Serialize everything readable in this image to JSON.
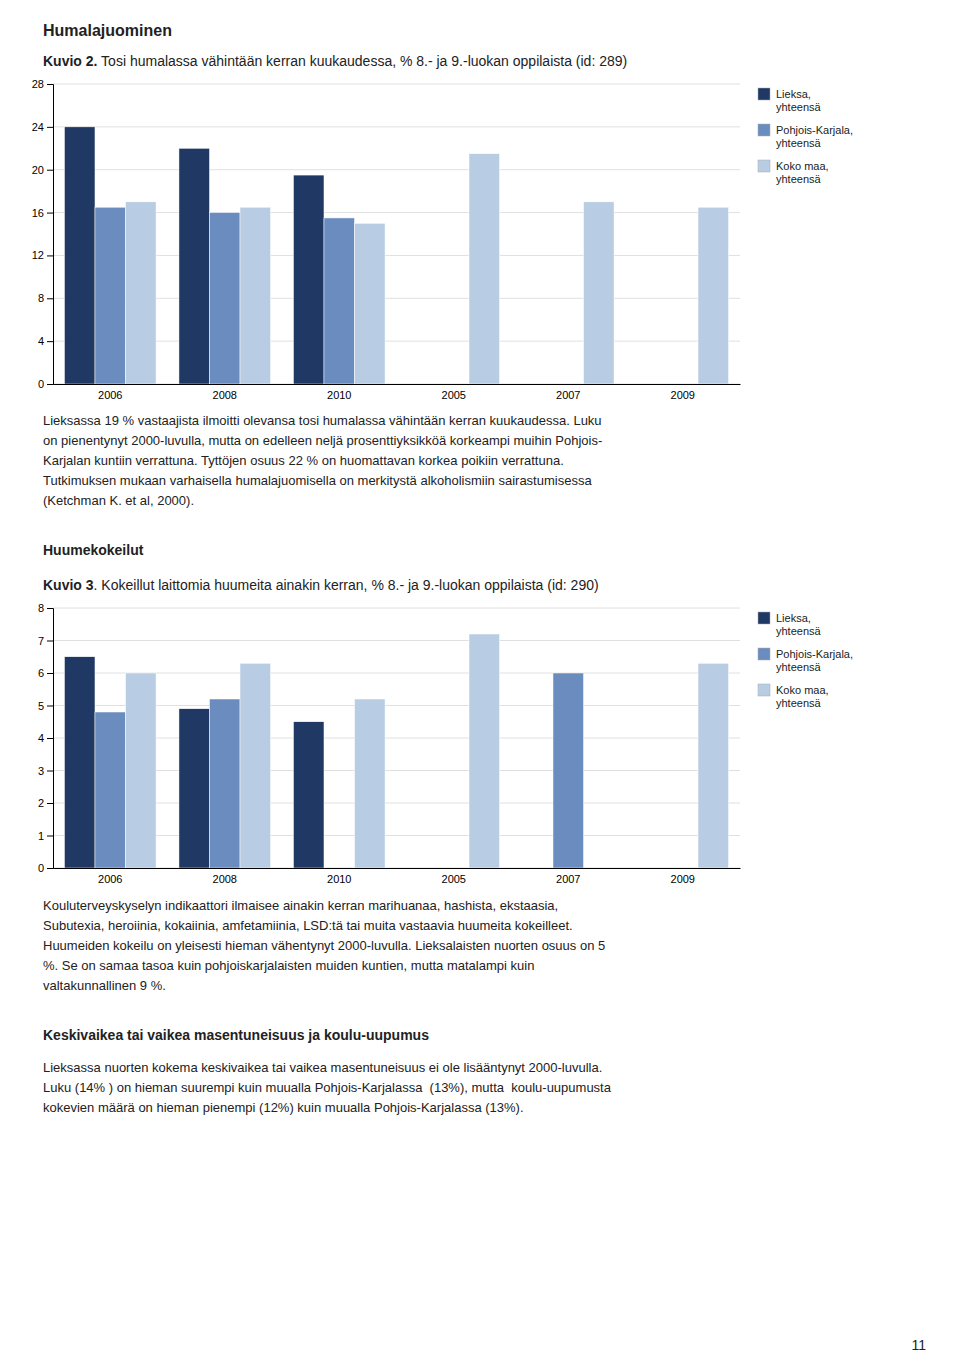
{
  "page_title": "Humalajuominen",
  "section_titles": [
    "Huumekokeilut",
    "Keskivaikea tai vaikea masentuneisuus ja koulu-uupumus"
  ],
  "paragraphs": [
    [
      "Lieksassa 19 % vastaajista ilmoitti olevansa tosi humalassa vähintään kerran kuukaudessa. Luku",
      "on pienentynyt 2000-luvulla, mutta on edelleen neljä prosenttiyksikköä korkeampi muihin Pohjois-",
      "Karjalan kuntiin verrattuna. Tyttöjen osuus 22 % on huomattavan korkea poikiin verrattuna.",
      "Tutkimuksen mukaan varhaisella humalajuomisella on merkitystä alkoholismiin sairastumisessa",
      "(Ketchman K. et al, 2000)."
    ],
    [
      "Kouluterveyskyselyn indikaattori ilmaisee ainakin kerran marihuanaa, hashista, ekstaasia,",
      "Subutexia, heroiinia, kokaiinia, amfetamiinia, LSD:tä tai muita vastaavia huumeita kokeilleet.",
      "Huumeiden kokeilu on yleisesti hieman vähentynyt 2000-luvulla. Lieksalaisten nuorten osuus on 5",
      "%. Se on samaa tasoa kuin pohjoiskarjalaisten muiden kuntien, mutta matalampi kuin",
      "valtakunnallinen 9 %."
    ],
    [
      "Lieksassa nuorten kokema keskivaikea tai vaikea masentuneisuus ei ole lisääntynyt 2000-luvulla.",
      "Luku (14% ) on hieman suurempi kuin muualla Pohjois-Karjalassa  (13%), mutta  koulu-uupumusta",
      "kokevien määrä on hieman pienempi (12%) kuin muualla Pohjois-Karjalassa (13%)."
    ]
  ],
  "page_number": "11",
  "chart_data": [
    {
      "type": "bar",
      "title": "Kuvio 2.",
      "subtitle": " Tosi humalassa vähintään kerran kuukaudessa, % 8.- ja 9.-luokan oppilaista (id: 289)",
      "categories": [
        "2006",
        "2008",
        "2010",
        "2005",
        "2007",
        "2009"
      ],
      "series": [
        {
          "name": "Lieksa,\nyhteensä",
          "color": "#1F3864",
          "values": [
            24,
            22,
            19.5,
            null,
            null,
            null
          ]
        },
        {
          "name": "Pohjois-Karjala,\nyhteensä",
          "color": "#6B8CBE",
          "values": [
            16.5,
            16,
            15.5,
            null,
            null,
            null
          ]
        },
        {
          "name": "Koko maa,\nyhteensä",
          "color": "#B8CCE4",
          "values": [
            17,
            16.5,
            15,
            21.5,
            17,
            16.5
          ]
        }
      ],
      "ylim": [
        0,
        28
      ],
      "yticks": [
        0,
        4,
        8,
        12,
        16,
        20,
        24,
        28
      ],
      "grid": true,
      "legend": "right"
    },
    {
      "type": "bar",
      "title": "Kuvio 3",
      "subtitle": ". Kokeillut laittomia huumeita ainakin kerran, % 8.- ja 9.-luokan oppilaista (id: 290)",
      "categories": [
        "2006",
        "2008",
        "2010",
        "2005",
        "2007",
        "2009"
      ],
      "series": [
        {
          "name": "Lieksa,\nyhteensä",
          "color": "#1F3864",
          "values": [
            6.5,
            4.9,
            4.5,
            null,
            null,
            null
          ]
        },
        {
          "name": "Pohjois-Karjala,\nyhteensä",
          "color": "#6B8CBE",
          "values": [
            4.8,
            5.2,
            null,
            null,
            6,
            null
          ]
        },
        {
          "name": "Koko maa,\nyhteensä",
          "color": "#B8CCE4",
          "values": [
            6,
            6.3,
            5.2,
            7.2,
            null,
            6.3
          ]
        }
      ],
      "ylim": [
        0,
        8
      ],
      "yticks": [
        0,
        1,
        2,
        3,
        4,
        5,
        6,
        7,
        8
      ],
      "grid": true,
      "legend": "right"
    }
  ]
}
